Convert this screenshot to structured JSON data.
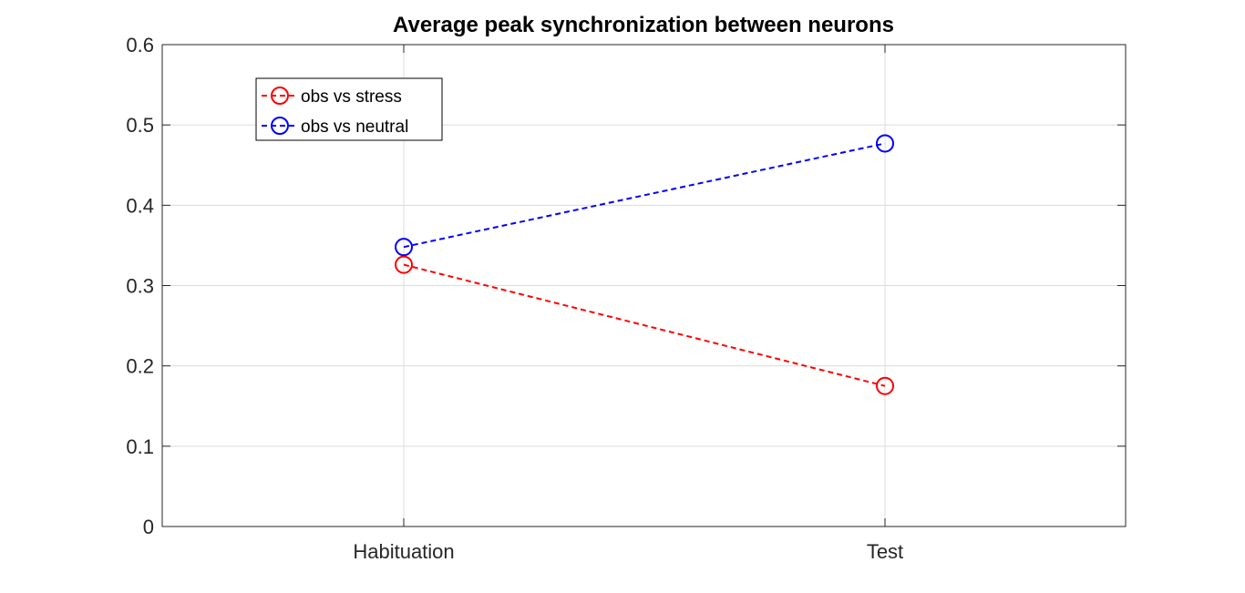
{
  "chart_data": {
    "type": "line",
    "title": "Average peak synchronization between neurons",
    "xlabel": "",
    "ylabel": "",
    "categories": [
      "Habituation",
      "Test"
    ],
    "ylim": [
      0,
      0.6
    ],
    "yticks": [
      "0",
      "0.1",
      "0.2",
      "0.3",
      "0.4",
      "0.5",
      "0.6"
    ],
    "grid": true,
    "legend_position": "top-left",
    "series": [
      {
        "name": "obs vs stress",
        "values": [
          0.326,
          0.175
        ],
        "color": "#ff0000",
        "marker": "circle",
        "line_style": "dashed"
      },
      {
        "name": "obs vs neutral",
        "values": [
          0.348,
          0.477
        ],
        "color": "#0000ff",
        "marker": "circle",
        "line_style": "dashed"
      }
    ]
  }
}
